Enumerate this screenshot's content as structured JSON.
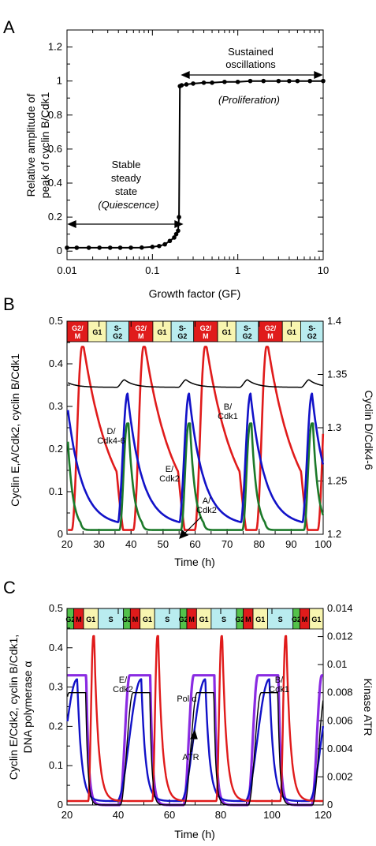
{
  "colors": {
    "red": "#e01b1b",
    "blue": "#1212c8",
    "green": "#1c7a2a",
    "black": "#000000",
    "purple": "#8a2be2",
    "phase_G1": "#f8f5b0",
    "phase_S": "#b9ecef",
    "phase_M": "#e01b1b",
    "phase_G2": "#53c24a"
  },
  "chart_data": [
    {
      "panel": "A",
      "type": "line",
      "xscale": "log",
      "xlim": [
        0.01,
        10
      ],
      "ylim": [
        -0.05,
        1.3
      ],
      "xticks": [
        "0.01",
        "0.1",
        "1",
        "10"
      ],
      "yticks": [
        "0",
        "0.2",
        "0.4",
        "0.6",
        "0.8",
        "1",
        "1.2"
      ],
      "xlabel": "Growth factor (GF)",
      "ylabel": [
        "Relative amplitude of",
        "peak of cyclin B/Cdk1"
      ],
      "x": [
        0.01,
        0.013,
        0.018,
        0.024,
        0.032,
        0.042,
        0.056,
        0.075,
        0.1,
        0.12,
        0.14,
        0.16,
        0.18,
        0.19,
        0.2,
        0.205,
        0.21,
        0.22,
        0.25,
        0.3,
        0.4,
        0.5,
        0.7,
        1,
        1.4,
        2,
        3,
        4,
        5,
        7,
        10
      ],
      "y": [
        0.02,
        0.02,
        0.02,
        0.02,
        0.02,
        0.02,
        0.02,
        0.021,
        0.025,
        0.03,
        0.04,
        0.06,
        0.08,
        0.1,
        0.12,
        0.2,
        0.97,
        0.975,
        0.98,
        0.985,
        0.99,
        0.99,
        0.995,
        0.995,
        1,
        1,
        1,
        1,
        1,
        1,
        1
      ],
      "annotations": {
        "stable_line1": "Stable",
        "stable_line2": "steady",
        "stable_line3": "state",
        "quiescence": "(Quiescence)",
        "sustained_line1": "Sustained",
        "sustained_line2": "oscillations",
        "proliferation": "(Proliferation)"
      }
    },
    {
      "panel": "B",
      "type": "line",
      "xlim": [
        20,
        100
      ],
      "ylim": [
        0,
        0.5
      ],
      "y2lim": [
        1.2,
        1.4
      ],
      "xticks": [
        "20",
        "30",
        "40",
        "50",
        "60",
        "70",
        "80",
        "90",
        "100"
      ],
      "yticks": [
        "0",
        "0.1",
        "0.2",
        "0.3",
        "0.4",
        "0.5"
      ],
      "y2ticks": [
        "1.2",
        "1.25",
        "1.3",
        "1.35",
        "1.4"
      ],
      "xlabel": "Time (h)",
      "ylabel": "Cyclin E,A/Cdk2, cyclin B/Cdk1",
      "y2label": "Cyclin D/Cdk4-6",
      "period": 19.2,
      "phases": [
        "G2/ M",
        "G1",
        "S- G2",
        "G2/ M",
        "G1",
        "S- G2",
        "G2/ M",
        "G1",
        "S- G2",
        "G2/ M",
        "G1",
        "S- G2"
      ],
      "series": [
        {
          "name": "B/ Cdk1",
          "color": "red",
          "peak": 0.44,
          "trough": 0.01
        },
        {
          "name": "E/ Cdk2",
          "color": "blue",
          "peak": 0.33,
          "trough": 0.02
        },
        {
          "name": "A/ Cdk2",
          "color": "green",
          "peak": 0.26,
          "trough": 0.01
        },
        {
          "name": "D/ Cdk4-6",
          "color": "black",
          "peak": 1.345,
          "trough": 1.338,
          "axis": "right"
        }
      ]
    },
    {
      "panel": "C",
      "type": "line",
      "xlim": [
        20,
        120
      ],
      "ylim": [
        0,
        0.5
      ],
      "y2lim": [
        0,
        0.014
      ],
      "xticks": [
        "20",
        "40",
        "60",
        "80",
        "100",
        "120"
      ],
      "yticks": [
        "0",
        "0.1",
        "0.2",
        "0.3",
        "0.4",
        "0.5"
      ],
      "y2ticks": [
        "0",
        "0.002",
        "0.004",
        "0.006",
        "0.008",
        "0.01",
        "0.012",
        "0.014"
      ],
      "xlabel": "Time (h)",
      "ylabel": [
        "Cyclin E/Cdk2, cyclin B/Cdk1,",
        "DNA polymerase α"
      ],
      "y2label": "Kinase ATR",
      "period": 25,
      "phases": [
        "G2",
        "M",
        "G1",
        "S",
        "G2",
        "M",
        "G1",
        "S",
        "G2",
        "M",
        "G1",
        "S",
        "G2",
        "M",
        "G1",
        "S",
        "G2",
        "M",
        "G1"
      ],
      "series": [
        {
          "name": "B/ Cdk1",
          "color": "red",
          "peak": 0.43,
          "trough": 0.01
        },
        {
          "name": "E/ Cdk2",
          "color": "blue",
          "peak": 0.32,
          "trough": 0.01
        },
        {
          "name": "Pol α",
          "color": "purple",
          "peak": 0.33,
          "trough": 0.0
        },
        {
          "name": "ATR",
          "color": "black",
          "peak": 0.008,
          "trough": 0.0,
          "axis": "right"
        }
      ]
    }
  ]
}
